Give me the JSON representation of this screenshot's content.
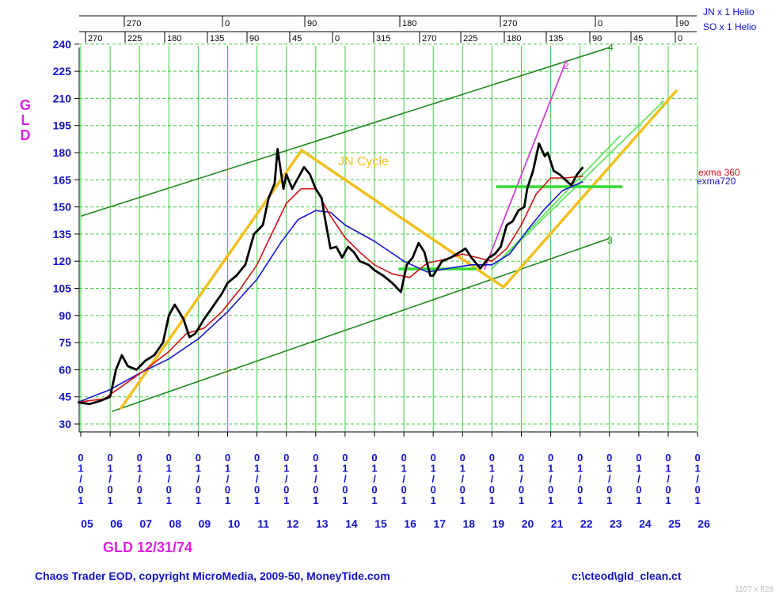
{
  "colors": {
    "price": "#000000",
    "exma360": "#d01010",
    "exma720": "#1515d0",
    "channel": "#1f8a1f",
    "cycle": "#f0c020",
    "fan": "#66e066",
    "fan2": "#d040d0",
    "grid": "#40cc40",
    "axis_text": "#1212c8",
    "title": "#e020e0"
  },
  "header": {
    "jn_label": "JN x 1 Helio",
    "so_label": "SO x 1 Helio",
    "jn_degrees": [
      "270",
      "0",
      "90",
      "180",
      "270",
      "0",
      "90"
    ],
    "so_degrees": [
      "270",
      "225",
      "180",
      "135",
      "90",
      "45",
      "0",
      "315",
      "270",
      "225",
      "180",
      "135",
      "90",
      "45",
      "0"
    ]
  },
  "chart_data": {
    "type": "line",
    "title": "GLD",
    "symbol_label": "GLD 12/31/74",
    "ylim": [
      30,
      240
    ],
    "yticks": [
      "30",
      "45",
      "60",
      "75",
      "90",
      "105",
      "120",
      "135",
      "150",
      "165",
      "180",
      "195",
      "210",
      "225",
      "240"
    ],
    "xlim": [
      "2005-01-01",
      "2026-01-01"
    ],
    "x_date_label": "01/01",
    "x_years": [
      "05",
      "06",
      "07",
      "08",
      "09",
      "10",
      "11",
      "12",
      "13",
      "14",
      "15",
      "16",
      "17",
      "18",
      "19",
      "20",
      "21",
      "22",
      "23",
      "24",
      "25",
      "26"
    ],
    "grid": true,
    "series": [
      {
        "name": "GLD",
        "x": [
          2004.9,
          2005.3,
          2005.7,
          2006.0,
          2006.2,
          2006.4,
          2006.6,
          2006.9,
          2007.2,
          2007.5,
          2007.8,
          2008.0,
          2008.2,
          2008.5,
          2008.7,
          2008.9,
          2009.2,
          2009.5,
          2009.8,
          2010.0,
          2010.3,
          2010.6,
          2010.9,
          2011.2,
          2011.4,
          2011.6,
          2011.7,
          2011.9,
          2012.0,
          2012.2,
          2012.4,
          2012.6,
          2012.8,
          2013.0,
          2013.2,
          2013.3,
          2013.5,
          2013.7,
          2013.9,
          2014.1,
          2014.3,
          2014.5,
          2014.8,
          2015.0,
          2015.3,
          2015.6,
          2015.9,
          2016.1,
          2016.3,
          2016.5,
          2016.7,
          2016.9,
          2017.0,
          2017.3,
          2017.6,
          2017.9,
          2018.1,
          2018.3,
          2018.6,
          2018.9,
          2019.1,
          2019.3,
          2019.5,
          2019.7,
          2019.9,
          2020.1,
          2020.2,
          2020.4,
          2020.6,
          2020.8,
          2020.9,
          2021.1,
          2021.3,
          2021.5,
          2021.7,
          2021.9,
          2022.1
        ],
        "values": [
          42,
          41,
          43,
          45,
          60,
          68,
          62,
          60,
          65,
          68,
          75,
          90,
          96,
          88,
          78,
          80,
          88,
          95,
          102,
          108,
          112,
          118,
          135,
          140,
          155,
          163,
          182,
          160,
          168,
          160,
          166,
          172,
          168,
          160,
          155,
          145,
          127,
          128,
          122,
          128,
          125,
          120,
          118,
          115,
          112,
          108,
          103,
          118,
          122,
          130,
          125,
          112,
          112,
          120,
          122,
          125,
          127,
          122,
          116,
          122,
          124,
          128,
          140,
          142,
          148,
          150,
          160,
          170,
          185,
          178,
          180,
          170,
          168,
          165,
          162,
          168,
          172
        ]
      },
      {
        "name": "exma 360",
        "x": [
          2004.9,
          2005.8,
          2006.5,
          2007.2,
          2008.0,
          2008.6,
          2009.2,
          2009.8,
          2010.4,
          2011.0,
          2011.5,
          2012.0,
          2012.5,
          2013.0,
          2013.5,
          2014.0,
          2014.5,
          2015.0,
          2015.6,
          2016.2,
          2016.8,
          2017.4,
          2018.0,
          2018.5,
          2019.0,
          2019.5,
          2020.0,
          2020.5,
          2021.0,
          2021.5,
          2022.1
        ],
        "values": [
          42,
          44,
          52,
          60,
          70,
          80,
          83,
          92,
          104,
          118,
          135,
          152,
          160,
          160,
          145,
          133,
          125,
          118,
          113,
          111,
          119,
          121,
          124,
          122,
          120,
          127,
          140,
          157,
          166,
          166,
          167
        ]
      },
      {
        "name": "exma720",
        "x": [
          2004.9,
          2006.0,
          2007.0,
          2008.0,
          2009.0,
          2010.0,
          2011.0,
          2011.8,
          2012.4,
          2013.0,
          2013.5,
          2014.0,
          2015.0,
          2016.0,
          2016.8,
          2017.5,
          2018.3,
          2019.0,
          2019.6,
          2020.2,
          2020.8,
          2021.4,
          2022.1
        ],
        "values": [
          42,
          49,
          58,
          66,
          77,
          92,
          110,
          130,
          143,
          148,
          147,
          140,
          131,
          120,
          114,
          116,
          118,
          118,
          124,
          137,
          149,
          159,
          164
        ]
      }
    ],
    "annotations": {
      "cycle_label": "JN Cycle",
      "exma360_label": "exma 360",
      "exma720_label": "exma720",
      "fan_labels": [
        "1",
        "2",
        "3",
        "4"
      ]
    }
  },
  "footer": {
    "left": "Chaos Trader EOD, copyright MicroMedia, 2009-50, MoneyTide.com",
    "right": "c:\\cteod\\gld_clean.ct",
    "dims": "1107 x 828"
  }
}
